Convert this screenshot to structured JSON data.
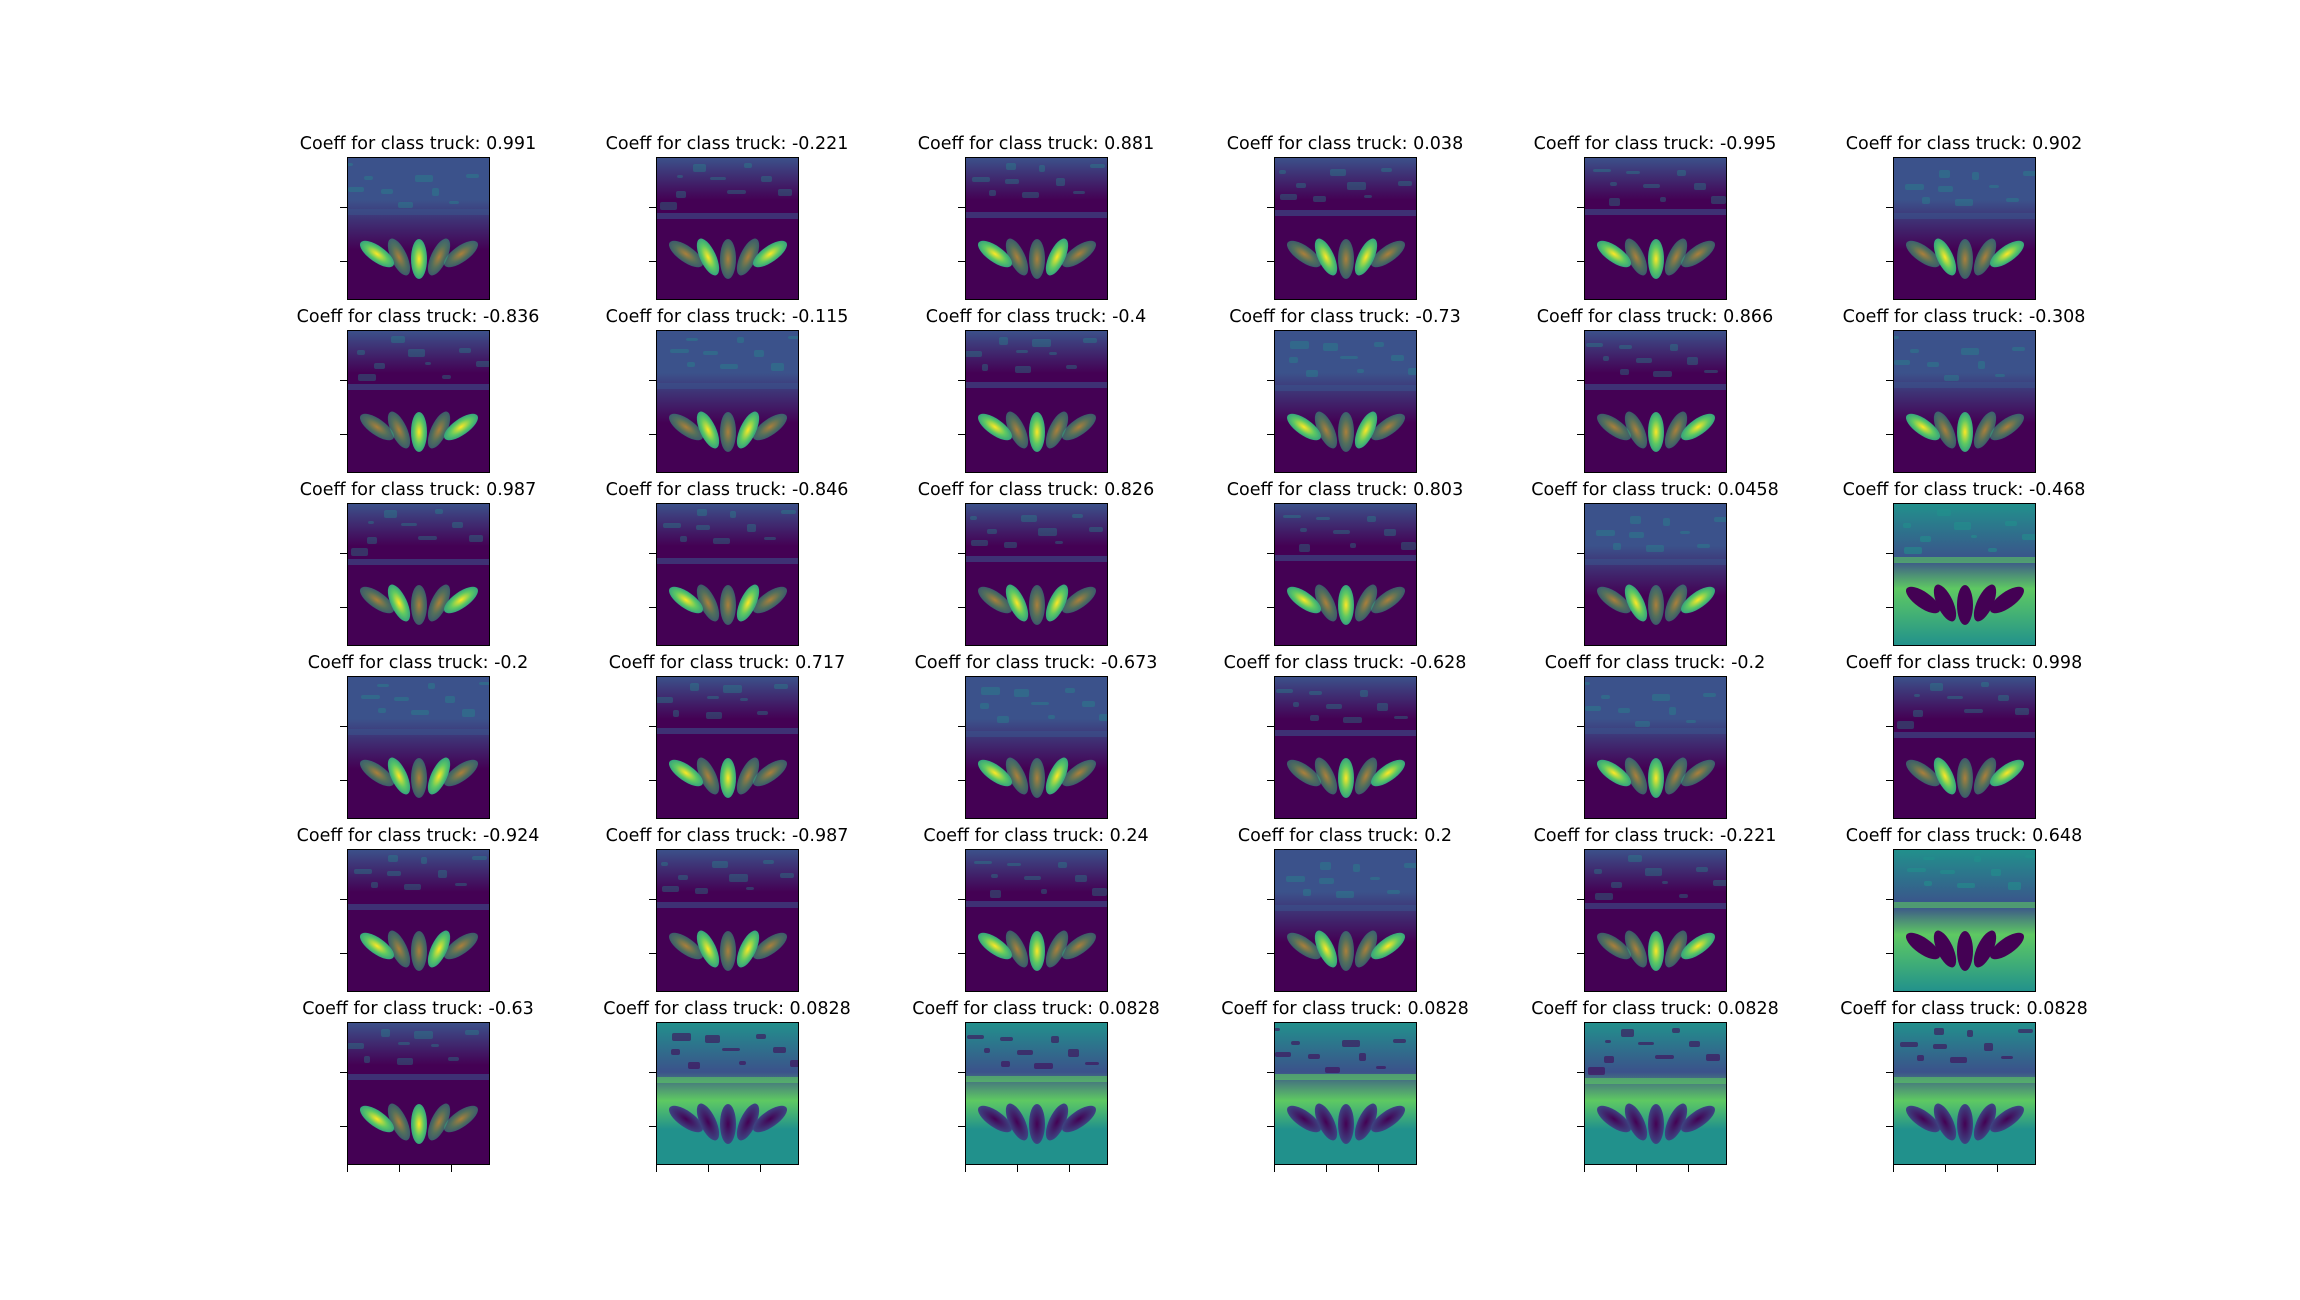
{
  "figure": {
    "rows": 6,
    "cols": 6,
    "colormap": "viridis",
    "panels": [
      {
        "title": "Coeff for class truck: 0.991",
        "coeff": 0.991,
        "variant": "saliency"
      },
      {
        "title": "Coeff for class truck: -0.221",
        "coeff": -0.221,
        "variant": "saliency"
      },
      {
        "title": "Coeff for class truck: 0.881",
        "coeff": 0.881,
        "variant": "saliency"
      },
      {
        "title": "Coeff for class truck: 0.038",
        "coeff": 0.038,
        "variant": "saliency"
      },
      {
        "title": "Coeff for class truck: -0.995",
        "coeff": -0.995,
        "variant": "saliency"
      },
      {
        "title": "Coeff for class truck: 0.902",
        "coeff": 0.902,
        "variant": "saliency"
      },
      {
        "title": "Coeff for class truck: -0.836",
        "coeff": -0.836,
        "variant": "saliency"
      },
      {
        "title": "Coeff for class truck: -0.115",
        "coeff": -0.115,
        "variant": "saliency"
      },
      {
        "title": "Coeff for class truck: -0.4",
        "coeff": -0.4,
        "variant": "saliency"
      },
      {
        "title": "Coeff for class truck: -0.73",
        "coeff": -0.73,
        "variant": "saliency"
      },
      {
        "title": "Coeff for class truck: 0.866",
        "coeff": 0.866,
        "variant": "saliency"
      },
      {
        "title": "Coeff for class truck: -0.308",
        "coeff": -0.308,
        "variant": "saliency"
      },
      {
        "title": "Coeff for class truck: 0.987",
        "coeff": 0.987,
        "variant": "saliency"
      },
      {
        "title": "Coeff for class truck: -0.846",
        "coeff": -0.846,
        "variant": "saliency"
      },
      {
        "title": "Coeff for class truck: 0.826",
        "coeff": 0.826,
        "variant": "saliency"
      },
      {
        "title": "Coeff for class truck: 0.803",
        "coeff": 0.803,
        "variant": "saliency"
      },
      {
        "title": "Coeff for class truck: 0.0458",
        "coeff": 0.0458,
        "variant": "saliency"
      },
      {
        "title": "Coeff for class truck: -0.468",
        "coeff": -0.468,
        "variant": "bright"
      },
      {
        "title": "Coeff for class truck: -0.2",
        "coeff": -0.2,
        "variant": "saliency"
      },
      {
        "title": "Coeff for class truck: 0.717",
        "coeff": 0.717,
        "variant": "saliency"
      },
      {
        "title": "Coeff for class truck: -0.673",
        "coeff": -0.673,
        "variant": "saliency"
      },
      {
        "title": "Coeff for class truck: -0.628",
        "coeff": -0.628,
        "variant": "saliency"
      },
      {
        "title": "Coeff for class truck: -0.2",
        "coeff": -0.2,
        "variant": "saliency"
      },
      {
        "title": "Coeff for class truck: 0.998",
        "coeff": 0.998,
        "variant": "saliency"
      },
      {
        "title": "Coeff for class truck: -0.924",
        "coeff": -0.924,
        "variant": "saliency"
      },
      {
        "title": "Coeff for class truck: -0.987",
        "coeff": -0.987,
        "variant": "saliency"
      },
      {
        "title": "Coeff for class truck: 0.24",
        "coeff": 0.24,
        "variant": "saliency"
      },
      {
        "title": "Coeff for class truck: 0.2",
        "coeff": 0.2,
        "variant": "saliency"
      },
      {
        "title": "Coeff for class truck: -0.221",
        "coeff": -0.221,
        "variant": "saliency"
      },
      {
        "title": "Coeff for class truck: 0.648",
        "coeff": 0.648,
        "variant": "bright"
      },
      {
        "title": "Coeff for class truck: -0.63",
        "coeff": -0.63,
        "variant": "saliency"
      },
      {
        "title": "Coeff for class truck: 0.0828",
        "coeff": 0.0828,
        "variant": "inverted"
      },
      {
        "title": "Coeff for class truck: 0.0828",
        "coeff": 0.0828,
        "variant": "inverted"
      },
      {
        "title": "Coeff for class truck: 0.0828",
        "coeff": 0.0828,
        "variant": "inverted"
      },
      {
        "title": "Coeff for class truck: 0.0828",
        "coeff": 0.0828,
        "variant": "inverted"
      },
      {
        "title": "Coeff for class truck: 0.0828",
        "coeff": 0.0828,
        "variant": "inverted"
      }
    ]
  },
  "colors": {
    "viridis_dark": "#440154",
    "viridis_darkblue": "#3b528b",
    "viridis_teal": "#21918c",
    "viridis_green": "#5ec962",
    "viridis_yellow": "#fde725",
    "frame": "#000000"
  }
}
